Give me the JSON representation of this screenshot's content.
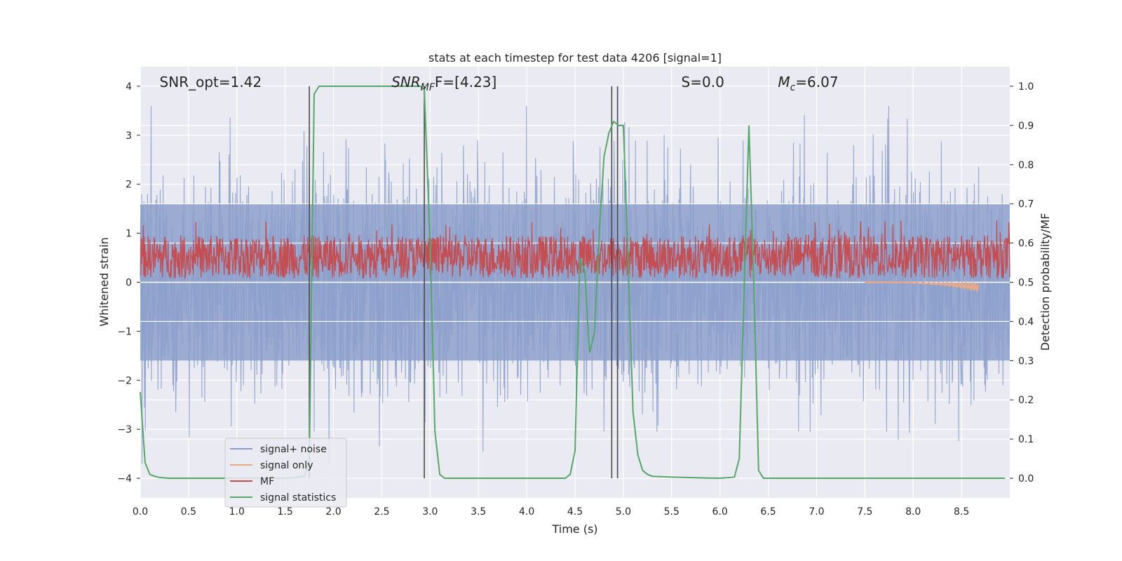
{
  "chart_data": {
    "type": "line",
    "title": "stats at each timestep for test data 4206 [signal=1]",
    "xlabel": "Time (s)",
    "ylabel": "Whitened strain",
    "y2label": "Detection probability/MF",
    "xlim": [
      0,
      9.0
    ],
    "ylim": [
      -4.4,
      4.4
    ],
    "y2lim": [
      -0.05,
      1.05
    ],
    "x_ticks": [
      "0.0",
      "0.5",
      "1.0",
      "1.5",
      "2.0",
      "2.5",
      "3.0",
      "3.5",
      "4.0",
      "4.5",
      "5.0",
      "5.5",
      "6.0",
      "6.5",
      "7.0",
      "7.5",
      "8.0",
      "8.5"
    ],
    "y_ticks": [
      "4",
      "3",
      "2",
      "1",
      "0",
      "−1",
      "−2",
      "−3",
      "−4"
    ],
    "y2_ticks": [
      "1.0",
      "0.9",
      "0.8",
      "0.7",
      "0.6",
      "0.5",
      "0.4",
      "0.3",
      "0.2",
      "0.1",
      "0.0"
    ],
    "grid": true,
    "legend_position": "lower-left",
    "annotations": [
      {
        "id": "snr_opt",
        "text": "SNR_opt=1.42",
        "x": 0.2
      },
      {
        "id": "snr_mf",
        "text": "SNR",
        "sub": "MF",
        "tail": "F=[4.23]",
        "x": 2.6
      },
      {
        "id": "s",
        "text": "S=0.0",
        "x": 5.6
      },
      {
        "id": "mc",
        "text": "M",
        "sub": "c",
        "tail": "=6.07",
        "x": 6.6
      }
    ],
    "vertical_lines_x": [
      1.75,
      2.94,
      4.88,
      4.94
    ],
    "series": [
      {
        "name": "signal+ noise",
        "color": "#8da0cb",
        "axis": "left",
        "kind": "noise",
        "amplitude_envelope": 1.6,
        "peak_range": [
          -3.7,
          3.6
        ]
      },
      {
        "name": "signal only",
        "color": "#e8a88a",
        "axis": "left",
        "kind": "chirp",
        "x_range": [
          7.5,
          8.68
        ],
        "min_value": -0.18
      },
      {
        "name": "MF",
        "color": "#c44e52",
        "axis": "right",
        "kind": "band",
        "band_range": [
          0.51,
          0.62
        ]
      },
      {
        "name": "signal statistics",
        "color": "#55a868",
        "axis": "right",
        "x": [
          0,
          0.05,
          0.1,
          0.15,
          0.2,
          0.3,
          0.5,
          1.0,
          1.5,
          1.7,
          1.75,
          1.8,
          1.85,
          1.9,
          2.0,
          2.5,
          2.9,
          2.94,
          3.0,
          3.05,
          3.1,
          3.15,
          3.3,
          3.6,
          4.0,
          4.4,
          4.45,
          4.5,
          4.55,
          4.6,
          4.65,
          4.7,
          4.75,
          4.8,
          4.85,
          4.9,
          4.95,
          5.0,
          5.05,
          5.1,
          5.15,
          5.2,
          5.25,
          5.3,
          5.5,
          6.0,
          6.15,
          6.2,
          6.25,
          6.3,
          6.35,
          6.4,
          6.45,
          6.5,
          7.0,
          8.0,
          8.95
        ],
        "y": [
          0.22,
          0.04,
          0.01,
          0.005,
          0.002,
          0.0,
          0.0,
          0.0,
          0.0,
          0.005,
          0.05,
          0.98,
          1.0,
          1.0,
          1.0,
          1.0,
          1.0,
          0.99,
          0.6,
          0.12,
          0.01,
          0.0,
          0.0,
          0.0,
          0.0,
          0.0,
          0.01,
          0.07,
          0.56,
          0.53,
          0.32,
          0.37,
          0.62,
          0.82,
          0.88,
          0.91,
          0.9,
          0.9,
          0.55,
          0.17,
          0.06,
          0.02,
          0.01,
          0.005,
          0.003,
          0.0,
          0.003,
          0.05,
          0.48,
          0.9,
          0.5,
          0.02,
          0.0,
          0.0,
          0.0,
          0.0,
          0.0
        ]
      }
    ]
  }
}
